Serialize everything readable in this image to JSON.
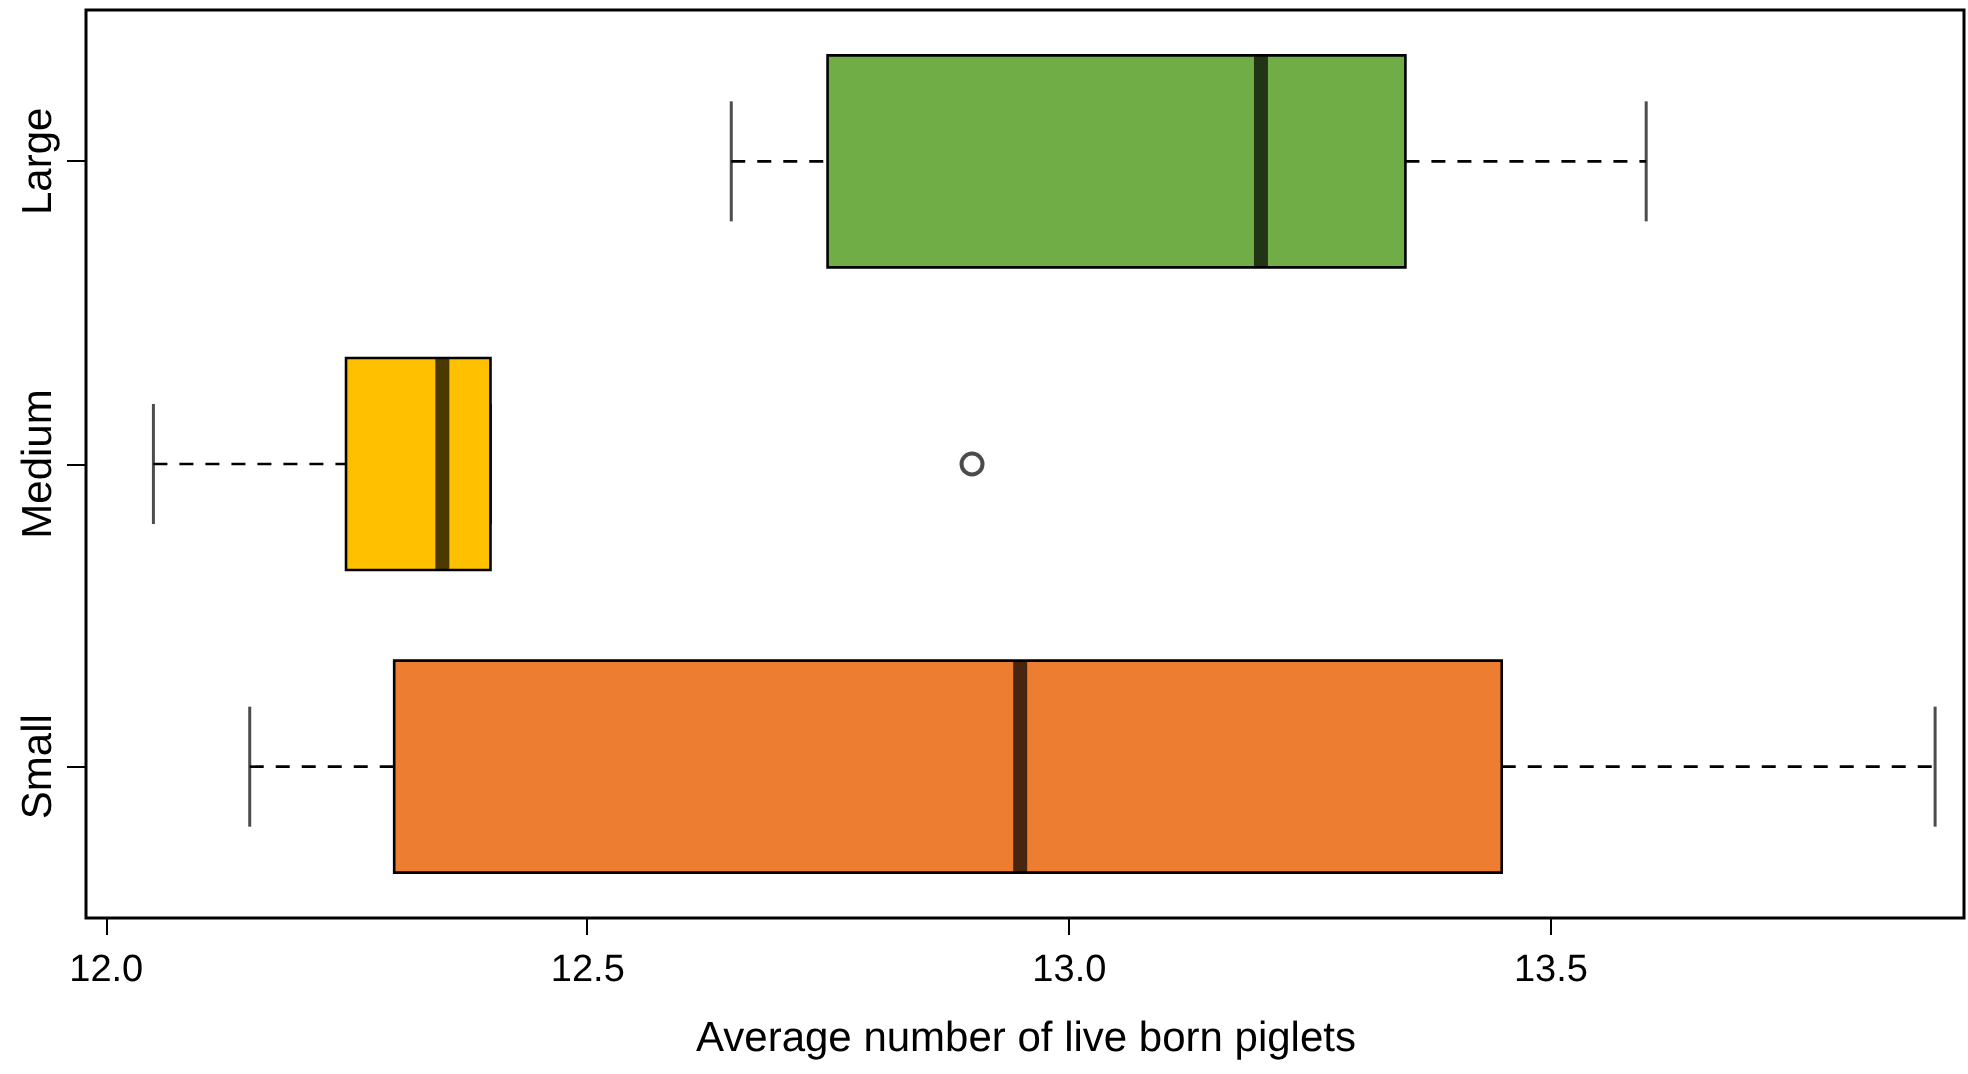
{
  "chart_data": {
    "type": "box",
    "orientation": "horizontal",
    "xlabel": "Average number of live born piglets",
    "categories": [
      "Large",
      "Medium",
      "Small"
    ],
    "colors": [
      "#70ad47",
      "#ffc000",
      "#ed7d31"
    ],
    "boxes": [
      {
        "low": 12.65,
        "q1": 12.75,
        "median": 13.2,
        "q3": 13.35,
        "high": 13.6
      },
      {
        "low": 12.05,
        "q1": 12.25,
        "median": 12.35,
        "q3": 12.4,
        "high": 12.4,
        "outliers": [
          12.9
        ]
      },
      {
        "low": 12.15,
        "q1": 12.3,
        "median": 12.95,
        "q3": 13.45,
        "high": 13.9
      }
    ],
    "xlim": [
      11.98,
      13.93
    ],
    "xticks": [
      {
        "value": 12,
        "label": "12.0"
      },
      {
        "value": 12.5,
        "label": "12.5"
      },
      {
        "value": 13,
        "label": "13.0"
      },
      {
        "value": 13.5,
        "label": "13.5"
      }
    ],
    "grid": false
  }
}
